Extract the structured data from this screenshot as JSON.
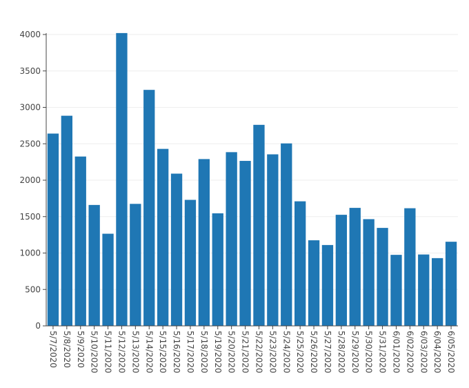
{
  "chart_data": {
    "type": "bar",
    "title": "",
    "xlabel": "",
    "ylabel": "",
    "categories": [
      "5/7/2020",
      "5/8/2020",
      "5/9/2020",
      "5/10/2020",
      "5/11/2020",
      "5/12/2020",
      "5/13/2020",
      "5/14/2020",
      "5/15/2020",
      "5/16/2020",
      "5/17/2020",
      "5/18/2020",
      "5/19/2020",
      "5/20/2020",
      "5/21/2020",
      "5/22/2020",
      "5/23/2020",
      "5/24/2020",
      "5/25/2020",
      "5/26/2020",
      "5/27/2020",
      "5/28/2020",
      "5/29/2020",
      "5/30/2020",
      "5/31/2020",
      "6/01/2020",
      "6/02/2020",
      "6/03/2020",
      "6/04/2020",
      "6/05/2020"
    ],
    "values": [
      2640,
      2885,
      2325,
      1660,
      1265,
      4020,
      1675,
      3240,
      2430,
      2090,
      1730,
      2290,
      1545,
      2385,
      2265,
      2760,
      2355,
      2505,
      1710,
      1175,
      1110,
      1525,
      1620,
      1465,
      1345,
      975,
      1615,
      980,
      930,
      1155
    ],
    "ylim": [
      0,
      4000
    ],
    "yticks": [
      0,
      500,
      1000,
      1500,
      2000,
      2500,
      3000,
      3500,
      4000
    ],
    "grid": true,
    "bar_color": "#1f77b4"
  }
}
